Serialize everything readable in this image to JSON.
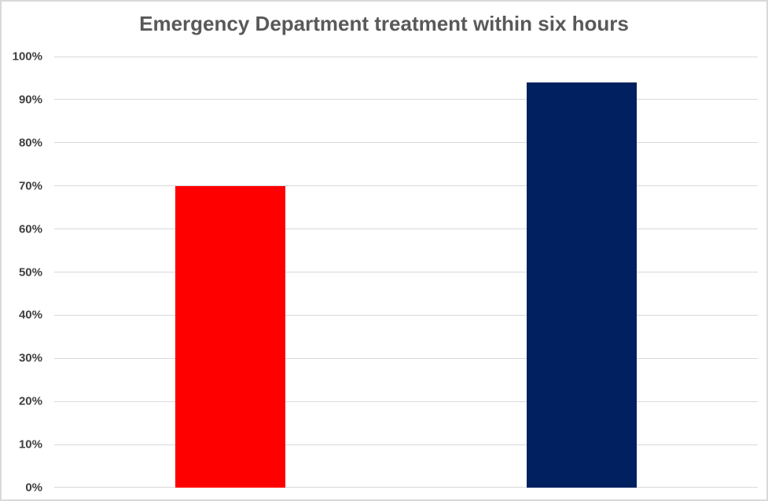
{
  "chart_data": {
    "type": "bar",
    "title": "Emergency Department treatment within six hours",
    "values": [
      70,
      94
    ],
    "bar_colors": [
      "#ff0000",
      "#002060"
    ],
    "categories": [
      "",
      ""
    ],
    "yticks": [
      "0%",
      "10%",
      "20%",
      "30%",
      "40%",
      "50%",
      "60%",
      "70%",
      "80%",
      "90%",
      "100%"
    ],
    "ylim": [
      0,
      100
    ],
    "ytick_step": 10,
    "xlabel": "",
    "ylabel": "",
    "legend": "none",
    "grid": true,
    "colors": {
      "gridline": "#d9d9d9",
      "title_text": "#595959",
      "tick_text": "#3f3f3f",
      "background": "#ffffff",
      "frame_border": "#d9d9d9"
    }
  }
}
